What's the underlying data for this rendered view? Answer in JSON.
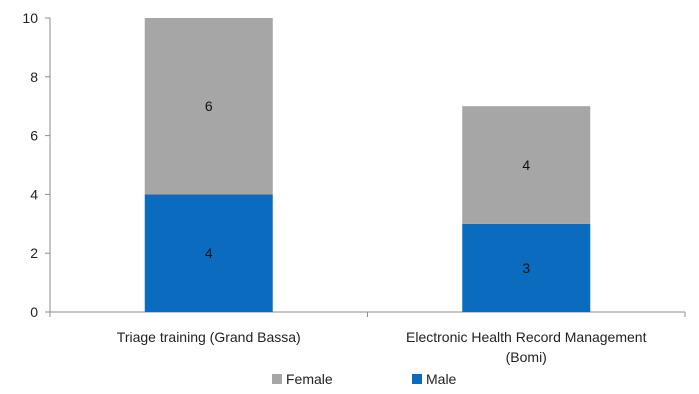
{
  "chart_data": {
    "type": "bar",
    "stacked": true,
    "categories": [
      [
        "Triage training (Grand Bassa)"
      ],
      [
        "Electronic Health Record Management",
        "(Bomi)"
      ]
    ],
    "series": [
      {
        "name": "Male",
        "values": [
          4,
          3
        ],
        "color": "#0b6cbf"
      },
      {
        "name": "Female",
        "values": [
          6,
          4
        ],
        "color": "#a6a6a6"
      }
    ],
    "ylim": [
      0,
      10
    ],
    "yticks": [
      0,
      2,
      4,
      6,
      8,
      10
    ],
    "grid": false,
    "legend": {
      "placement": "bottom",
      "order": [
        "Female",
        "Male"
      ]
    }
  }
}
